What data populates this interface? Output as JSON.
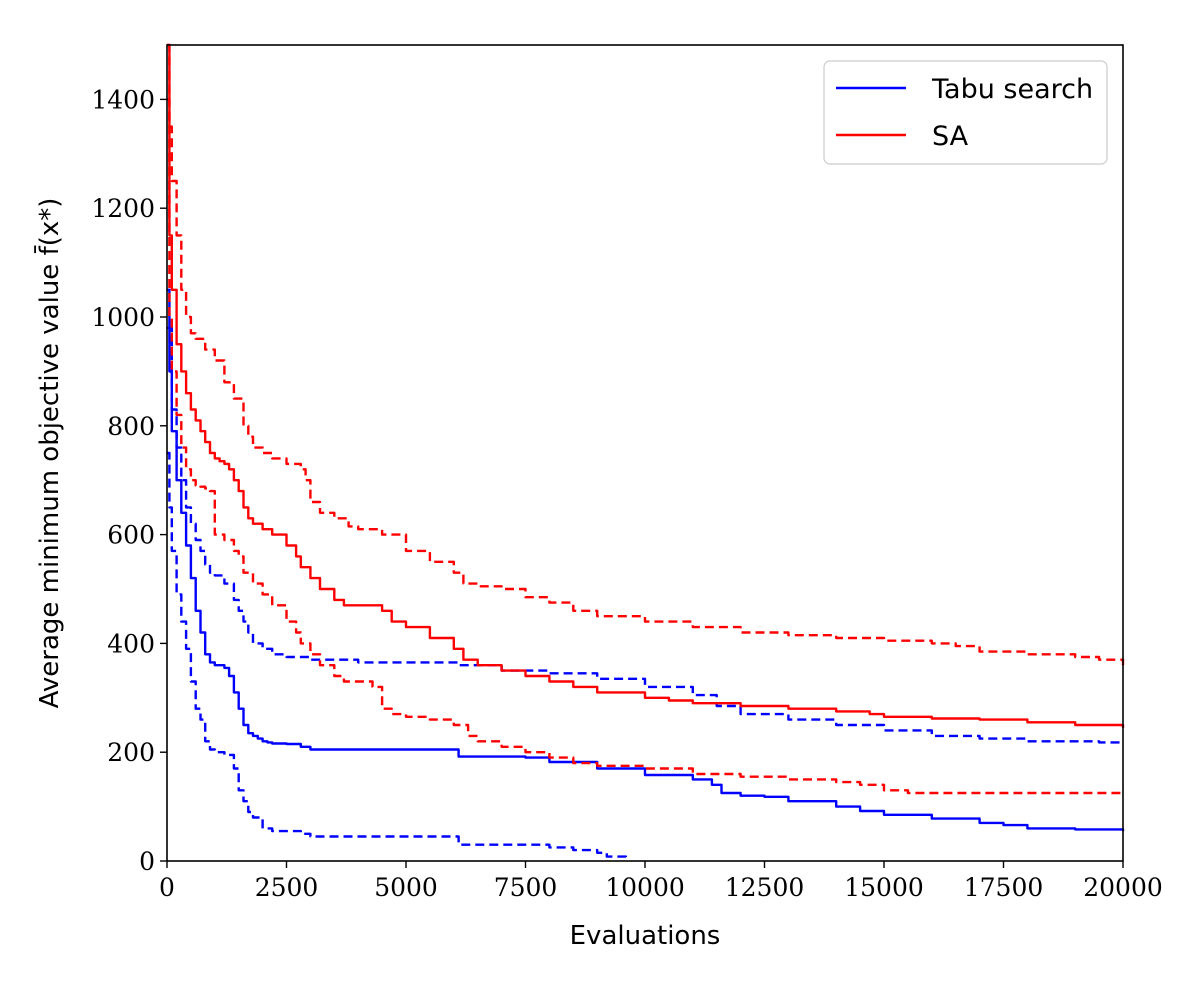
{
  "chart_data": {
    "type": "line",
    "xlabel": "Evaluations",
    "ylabel": "Average minimum objective value f̄(x*)",
    "xlim": [
      0,
      20000
    ],
    "ylim": [
      0,
      1500
    ],
    "xticks": [
      0,
      2500,
      5000,
      7500,
      10000,
      12500,
      15000,
      17500,
      20000
    ],
    "yticks": [
      0,
      200,
      400,
      600,
      800,
      1000,
      1200,
      1400
    ],
    "grid": false,
    "legend_position": "top-right",
    "legend": [
      {
        "label": "Tabu search",
        "color": "#0000ff"
      },
      {
        "label": "SA",
        "color": "#ff0000"
      }
    ],
    "series": [
      {
        "name": "Tabu search",
        "color": "#0000ff",
        "style": "solid",
        "x": [
          0,
          50,
          100,
          200,
          300,
          400,
          500,
          600,
          700,
          800,
          900,
          1000,
          1100,
          1200,
          1300,
          1400,
          1500,
          1600,
          1700,
          1800,
          1900,
          2000,
          2100,
          2200,
          2500,
          2800,
          3000,
          4000,
          5000,
          6000,
          6100,
          6500,
          7500,
          8000,
          9000,
          10000,
          11000,
          11400,
          11600,
          12000,
          12500,
          13000,
          14000,
          14500,
          15000,
          16000,
          17000,
          17500,
          18000,
          19000,
          20000
        ],
        "y": [
          1050,
          900,
          790,
          700,
          640,
          580,
          520,
          460,
          420,
          380,
          365,
          360,
          360,
          355,
          340,
          310,
          280,
          250,
          235,
          230,
          225,
          220,
          218,
          216,
          215,
          210,
          205,
          205,
          205,
          205,
          192,
          192,
          190,
          182,
          170,
          158,
          150,
          140,
          125,
          120,
          118,
          110,
          100,
          92,
          85,
          78,
          70,
          66,
          60,
          58,
          55
        ]
      },
      {
        "name": "Tabu search",
        "color": "#0000ff",
        "style": "dashed",
        "x": [
          0,
          50,
          100,
          200,
          300,
          400,
          500,
          600,
          700,
          800,
          900,
          1000,
          1200,
          1400,
          1500,
          1600,
          1700,
          1800,
          2000,
          2200,
          2500,
          2800,
          3000,
          4000,
          5000,
          6000,
          6100,
          7000,
          8000,
          8500,
          9000,
          9200,
          9600
        ],
        "y": [
          750,
          650,
          570,
          490,
          440,
          390,
          330,
          280,
          260,
          220,
          205,
          200,
          195,
          170,
          130,
          110,
          90,
          80,
          60,
          55,
          55,
          50,
          45,
          45,
          45,
          45,
          30,
          30,
          25,
          20,
          15,
          8,
          0
        ]
      },
      {
        "name": "Tabu search",
        "color": "#0000ff",
        "style": "dashed",
        "x": [
          0,
          100,
          200,
          300,
          400,
          500,
          600,
          700,
          800,
          900,
          1000,
          1200,
          1400,
          1500,
          1600,
          1700,
          1800,
          2000,
          2200,
          2500,
          2800,
          3000,
          4000,
          5000,
          6000,
          6100,
          7000,
          8000,
          9000,
          10000,
          11000,
          11500,
          12000,
          13000,
          14000,
          15000,
          16000,
          17000,
          18000,
          19000,
          19500,
          20000
        ],
        "y": [
          980,
          830,
          760,
          700,
          650,
          620,
          590,
          570,
          545,
          530,
          525,
          510,
          480,
          460,
          440,
          420,
          400,
          390,
          380,
          375,
          375,
          370,
          365,
          365,
          365,
          360,
          350,
          345,
          335,
          320,
          305,
          285,
          270,
          260,
          250,
          240,
          230,
          225,
          220,
          220,
          218,
          216
        ]
      },
      {
        "name": "SA",
        "color": "#ff0000",
        "style": "solid",
        "x": [
          0,
          50,
          100,
          200,
          300,
          400,
          500,
          600,
          700,
          800,
          900,
          1000,
          1100,
          1200,
          1300,
          1400,
          1500,
          1600,
          1700,
          1800,
          2000,
          2200,
          2500,
          2700,
          2800,
          3000,
          3200,
          3500,
          3700,
          4000,
          4500,
          4700,
          5000,
          5500,
          6000,
          6200,
          6500,
          7000,
          7500,
          8000,
          8500,
          9000,
          10000,
          10500,
          11000,
          12000,
          13000,
          14000,
          14700,
          15000,
          16000,
          17000,
          18000,
          19000,
          20000
        ],
        "y": [
          1500,
          1150,
          1050,
          950,
          900,
          860,
          830,
          810,
          790,
          770,
          750,
          740,
          735,
          730,
          720,
          700,
          680,
          650,
          630,
          620,
          610,
          600,
          580,
          560,
          540,
          520,
          500,
          480,
          470,
          470,
          460,
          440,
          430,
          410,
          390,
          370,
          360,
          350,
          340,
          330,
          320,
          310,
          300,
          295,
          290,
          285,
          280,
          275,
          270,
          265,
          262,
          260,
          255,
          250,
          245
        ]
      },
      {
        "name": "SA",
        "color": "#ff0000",
        "style": "dashed",
        "x": [
          0,
          50,
          100,
          200,
          300,
          400,
          500,
          600,
          700,
          800,
          900,
          1000,
          1200,
          1400,
          1500,
          1600,
          1800,
          2000,
          2200,
          2500,
          2700,
          2800,
          3000,
          3200,
          3500,
          3700,
          4000,
          4300,
          4500,
          4700,
          5000,
          5500,
          6000,
          6300,
          6500,
          7000,
          7500,
          8000,
          8500,
          9000,
          10000,
          11000,
          12000,
          13000,
          14000,
          14500,
          15000,
          15500,
          16000,
          17000,
          18000,
          19000,
          20000
        ],
        "y": [
          1400,
          1000,
          900,
          820,
          760,
          720,
          700,
          690,
          688,
          685,
          680,
          600,
          590,
          570,
          560,
          530,
          510,
          490,
          470,
          440,
          420,
          400,
          380,
          360,
          340,
          330,
          330,
          320,
          280,
          270,
          265,
          260,
          250,
          230,
          220,
          210,
          200,
          190,
          180,
          175,
          170,
          160,
          155,
          150,
          145,
          140,
          130,
          125,
          125,
          125,
          125,
          125,
          125
        ]
      },
      {
        "name": "SA",
        "color": "#ff0000",
        "style": "dashed",
        "x": [
          0,
          50,
          100,
          200,
          300,
          400,
          500,
          600,
          800,
          1000,
          1200,
          1400,
          1600,
          1700,
          1800,
          2000,
          2200,
          2500,
          2800,
          2900,
          3000,
          3200,
          3500,
          3800,
          4000,
          4500,
          5000,
          5500,
          6000,
          6200,
          6500,
          7000,
          7500,
          8000,
          8500,
          9000,
          10000,
          11000,
          12000,
          13000,
          14000,
          15000,
          16000,
          16500,
          17000,
          18000,
          19000,
          19500,
          20000
        ],
        "y": [
          1500,
          1350,
          1250,
          1150,
          1050,
          1000,
          970,
          960,
          940,
          920,
          880,
          850,
          800,
          780,
          760,
          750,
          740,
          730,
          720,
          700,
          660,
          640,
          630,
          615,
          610,
          600,
          570,
          550,
          530,
          510,
          505,
          500,
          485,
          475,
          460,
          450,
          440,
          430,
          420,
          415,
          410,
          405,
          400,
          395,
          385,
          380,
          375,
          370,
          360
        ]
      }
    ]
  }
}
